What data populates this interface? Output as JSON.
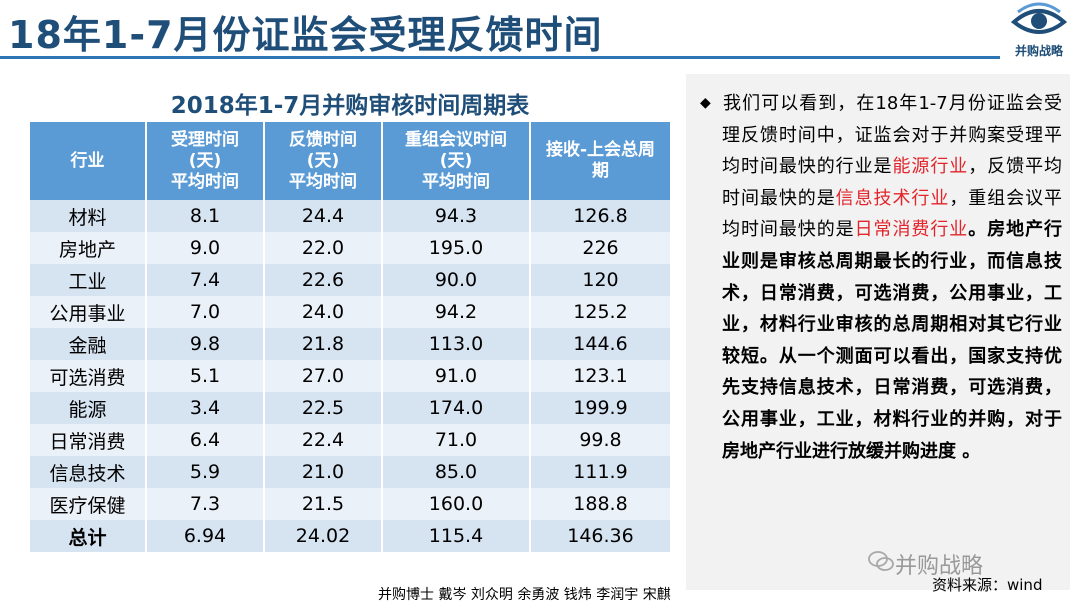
{
  "slide": {
    "title": "18年1-7月份证监会受理反馈时间",
    "logo_text": "并购战略"
  },
  "table": {
    "title": "2018年1-7月并购审核时间周期表",
    "headers": [
      [
        "行业"
      ],
      [
        "受理时间",
        "(天)",
        "平均时间"
      ],
      [
        "反馈时间",
        "(天)",
        "平均时间"
      ],
      [
        "重组会议时间",
        "(天)",
        "平均时间"
      ],
      [
        "接收-上会总周",
        "期"
      ]
    ],
    "rows": [
      [
        "材料",
        "8.1",
        "24.4",
        "94.3",
        "126.8"
      ],
      [
        "房地产",
        "9.0",
        "22.0",
        "195.0",
        "226"
      ],
      [
        "工业",
        "7.4",
        "22.6",
        "90.0",
        "120"
      ],
      [
        "公用事业",
        "7.0",
        "24.0",
        "94.2",
        "125.2"
      ],
      [
        "金融",
        "9.8",
        "21.8",
        "113.0",
        "144.6"
      ],
      [
        "可选消费",
        "5.1",
        "27.0",
        "91.0",
        "123.1"
      ],
      [
        "能源",
        "3.4",
        "22.5",
        "174.0",
        "199.9"
      ],
      [
        "日常消费",
        "6.4",
        "22.4",
        "71.0",
        "99.8"
      ],
      [
        "信息技术",
        "5.9",
        "21.0",
        "85.0",
        "111.9"
      ],
      [
        "医疗保健",
        "7.3",
        "21.5",
        "160.0",
        "188.8"
      ]
    ],
    "total": [
      "总计",
      "6.94",
      "24.02",
      "115.4",
      "146.36"
    ]
  },
  "commentary": {
    "bullet": "◆",
    "segments": [
      {
        "text": "我们可以看到，在18年1-7月份证监会受理反馈时间中，证监会对于并购案受理平均时间最快的行业是",
        "style": "normal"
      },
      {
        "text": "能源行业",
        "style": "red"
      },
      {
        "text": "，反馈平均时间最快的是",
        "style": "normal"
      },
      {
        "text": "信息技术行业",
        "style": "red"
      },
      {
        "text": "，重组会议平均时间最快的是",
        "style": "normal"
      },
      {
        "text": "日常消费行业",
        "style": "red"
      },
      {
        "text": "。房地产行业则是审核总周期最长的行业，而信息技术，日常消费，可选消费，公用事业，工业，材料行业审核的总周期相对其它行业较短。从一个测面可以看出，国家支持优先支持信息技术，日常消费，可选消费，公用事业，工业，材料行业的并购，对于房地产行业进行放缓并购进度 。",
        "style": "bold"
      }
    ]
  },
  "footer": {
    "watermark": "并购战略",
    "source": "资料来源：wind",
    "authors": "并购博士 戴岑 刘众明 余勇波 钱炜 李润宇 宋麒"
  },
  "colors": {
    "title": "#1f4e79",
    "header_bg": "#5b9bd5",
    "row_dark": "#d6e3f1",
    "row_light": "#ebf1f8",
    "highlight": "#e3242b"
  }
}
